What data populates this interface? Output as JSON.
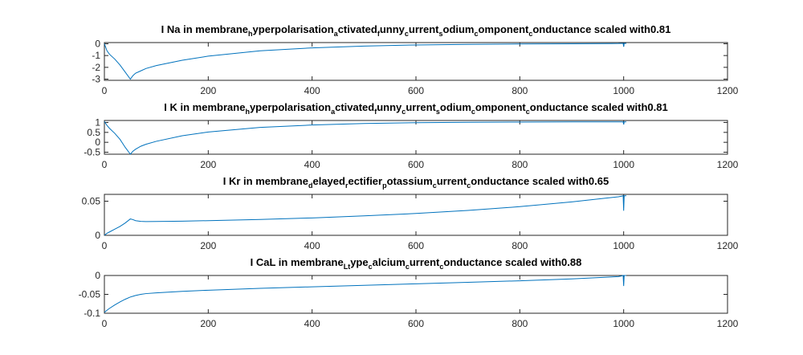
{
  "chart_data": [
    {
      "type": "line",
      "title": {
        "segments": [
          {
            "text": "I Na in membrane"
          },
          {
            "text": "h",
            "sub": true
          },
          {
            "text": "yperpolarisation"
          },
          {
            "text": "a",
            "sub": true
          },
          {
            "text": "ctivated"
          },
          {
            "text": "f",
            "sub": true
          },
          {
            "text": "unny"
          },
          {
            "text": "c",
            "sub": true
          },
          {
            "text": "urrent"
          },
          {
            "text": "s",
            "sub": true
          },
          {
            "text": "odium"
          },
          {
            "text": "c",
            "sub": true
          },
          {
            "text": "omponent"
          },
          {
            "text": "c",
            "sub": true
          },
          {
            "text": "onductance scaled with0.81"
          }
        ]
      },
      "xlim": [
        0,
        1200
      ],
      "ylim": [
        -3.1,
        0.1
      ],
      "xticks": [
        0,
        200,
        400,
        600,
        800,
        1000,
        1200
      ],
      "yticks": [
        0,
        -1,
        -2,
        -3
      ],
      "ytick_labels": [
        "0",
        "-1",
        "-2",
        "-3"
      ],
      "series": [
        {
          "color": "#0072bd",
          "x": [
            0,
            5,
            10,
            20,
            30,
            40,
            50,
            55,
            60,
            70,
            80,
            100,
            150,
            200,
            300,
            400,
            500,
            600,
            700,
            800,
            900,
            990,
            997,
            998,
            999,
            1000,
            1001,
            1002,
            1003,
            1005
          ],
          "y": [
            0,
            -0.6,
            -0.9,
            -1.3,
            -1.8,
            -2.4,
            -3.0,
            -2.7,
            -2.5,
            -2.3,
            -2.1,
            -1.85,
            -1.4,
            -1.05,
            -0.6,
            -0.35,
            -0.2,
            -0.1,
            -0.05,
            -0.02,
            0.0,
            0.02,
            0.03,
            0.03,
            0.03,
            -0.25,
            0.03,
            0.03,
            0.03,
            0.03
          ]
        }
      ]
    },
    {
      "type": "line",
      "title": {
        "segments": [
          {
            "text": "I K in membrane"
          },
          {
            "text": "h",
            "sub": true
          },
          {
            "text": "yperpolarisation"
          },
          {
            "text": "a",
            "sub": true
          },
          {
            "text": "ctivated"
          },
          {
            "text": "f",
            "sub": true
          },
          {
            "text": "unny"
          },
          {
            "text": "c",
            "sub": true
          },
          {
            "text": "urrent"
          },
          {
            "text": "s",
            "sub": true
          },
          {
            "text": "odium"
          },
          {
            "text": "c",
            "sub": true
          },
          {
            "text": "omponent"
          },
          {
            "text": "c",
            "sub": true
          },
          {
            "text": "onductance scaled with0.81"
          }
        ]
      },
      "xlim": [
        0,
        1200
      ],
      "ylim": [
        -0.6,
        1.1
      ],
      "xticks": [
        0,
        200,
        400,
        600,
        800,
        1000,
        1200
      ],
      "yticks": [
        1,
        0.5,
        0,
        -0.5
      ],
      "ytick_labels": [
        "1",
        "0.5",
        "0",
        "-0.5"
      ],
      "series": [
        {
          "color": "#0072bd",
          "x": [
            0,
            5,
            10,
            20,
            30,
            40,
            50,
            55,
            60,
            70,
            80,
            100,
            150,
            200,
            300,
            400,
            500,
            600,
            700,
            800,
            900,
            990,
            997,
            998,
            999,
            1000,
            1001,
            1002,
            1003,
            1005
          ],
          "y": [
            1.05,
            0.85,
            0.7,
            0.45,
            0.15,
            -0.25,
            -0.6,
            -0.45,
            -0.35,
            -0.2,
            -0.1,
            0.05,
            0.33,
            0.52,
            0.75,
            0.87,
            0.95,
            0.99,
            1.01,
            1.02,
            1.03,
            1.03,
            1.03,
            1.03,
            1.03,
            0.9,
            1.03,
            1.03,
            1.03,
            1.03
          ]
        }
      ]
    },
    {
      "type": "line",
      "title": {
        "segments": [
          {
            "text": "I Kr in membrane"
          },
          {
            "text": "d",
            "sub": true
          },
          {
            "text": "elayed"
          },
          {
            "text": "r",
            "sub": true
          },
          {
            "text": "ectifier"
          },
          {
            "text": "p",
            "sub": true
          },
          {
            "text": "otassium"
          },
          {
            "text": "c",
            "sub": true
          },
          {
            "text": "urrent"
          },
          {
            "text": "c",
            "sub": true
          },
          {
            "text": "onductance scaled with0.65"
          }
        ]
      },
      "xlim": [
        0,
        1200
      ],
      "ylim": [
        0,
        0.06
      ],
      "xticks": [
        0,
        200,
        400,
        600,
        800,
        1000,
        1200
      ],
      "yticks": [
        0.05,
        0
      ],
      "ytick_labels": [
        "0.05",
        "0"
      ],
      "series": [
        {
          "color": "#0072bd",
          "x": [
            0,
            5,
            10,
            20,
            30,
            40,
            50,
            55,
            60,
            70,
            80,
            100,
            150,
            200,
            300,
            400,
            500,
            600,
            700,
            800,
            900,
            990,
            997,
            998,
            999,
            1000,
            1001,
            1002,
            1003,
            1005
          ],
          "y": [
            0.0,
            0.003,
            0.005,
            0.009,
            0.013,
            0.018,
            0.024,
            0.023,
            0.0215,
            0.0205,
            0.0202,
            0.0203,
            0.0208,
            0.0215,
            0.0232,
            0.0255,
            0.0285,
            0.032,
            0.0365,
            0.042,
            0.049,
            0.0565,
            0.0575,
            0.058,
            0.058,
            0.036,
            0.058,
            0.058,
            0.058,
            0.058
          ]
        }
      ]
    },
    {
      "type": "line",
      "title": {
        "segments": [
          {
            "text": "I CaL in membrane"
          },
          {
            "text": "Lt",
            "sub": true
          },
          {
            "text": "ype"
          },
          {
            "text": "c",
            "sub": true
          },
          {
            "text": "alcium"
          },
          {
            "text": "c",
            "sub": true
          },
          {
            "text": "urrent"
          },
          {
            "text": "c",
            "sub": true
          },
          {
            "text": "onductance scaled with0.88"
          }
        ]
      },
      "xlim": [
        0,
        1200
      ],
      "ylim": [
        -0.1,
        0.0
      ],
      "xticks": [
        0,
        200,
        400,
        600,
        800,
        1000,
        1200
      ],
      "yticks": [
        0,
        -0.05,
        -0.1
      ],
      "ytick_labels": [
        "0",
        "-0.05",
        "-0.1"
      ],
      "series": [
        {
          "color": "#0072bd",
          "x": [
            0,
            5,
            10,
            20,
            30,
            40,
            50,
            55,
            60,
            70,
            80,
            100,
            150,
            200,
            300,
            400,
            500,
            600,
            700,
            800,
            900,
            990,
            997,
            998,
            999,
            1000,
            1001,
            1002,
            1003,
            1005
          ],
          "y": [
            -0.098,
            -0.092,
            -0.087,
            -0.078,
            -0.07,
            -0.063,
            -0.057,
            -0.055,
            -0.053,
            -0.05,
            -0.048,
            -0.046,
            -0.042,
            -0.039,
            -0.034,
            -0.03,
            -0.026,
            -0.022,
            -0.018,
            -0.014,
            -0.009,
            -0.003,
            -0.001,
            0.0,
            0.0,
            -0.028,
            0.0,
            0.0,
            0.0,
            0.0
          ]
        }
      ]
    }
  ]
}
